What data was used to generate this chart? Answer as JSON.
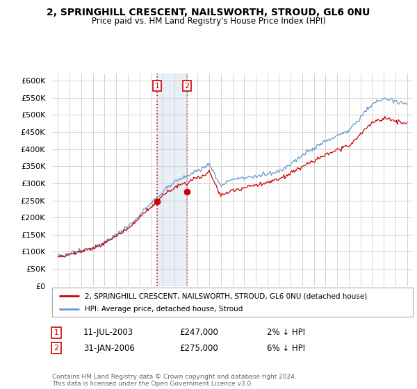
{
  "title1": "2, SPRINGHILL CRESCENT, NAILSWORTH, STROUD, GL6 0NU",
  "title2": "Price paid vs. HM Land Registry's House Price Index (HPI)",
  "legend1": "2, SPRINGHILL CRESCENT, NAILSWORTH, STROUD, GL6 0NU (detached house)",
  "legend2": "HPI: Average price, detached house, Stroud",
  "sale1_date": "11-JUL-2003",
  "sale1_price": 247000,
  "sale1_pct": "2%",
  "sale2_date": "31-JAN-2006",
  "sale2_price": 275000,
  "sale2_pct": "6%",
  "footer": "Contains HM Land Registry data © Crown copyright and database right 2024.\nThis data is licensed under the Open Government Licence v3.0.",
  "hpi_color": "#6699cc",
  "price_color": "#cc0000",
  "sale1_x": 2003.53,
  "sale2_x": 2006.08,
  "ylim_min": 0,
  "ylim_max": 620000,
  "xlim_min": 1994.5,
  "xlim_max": 2025.5
}
